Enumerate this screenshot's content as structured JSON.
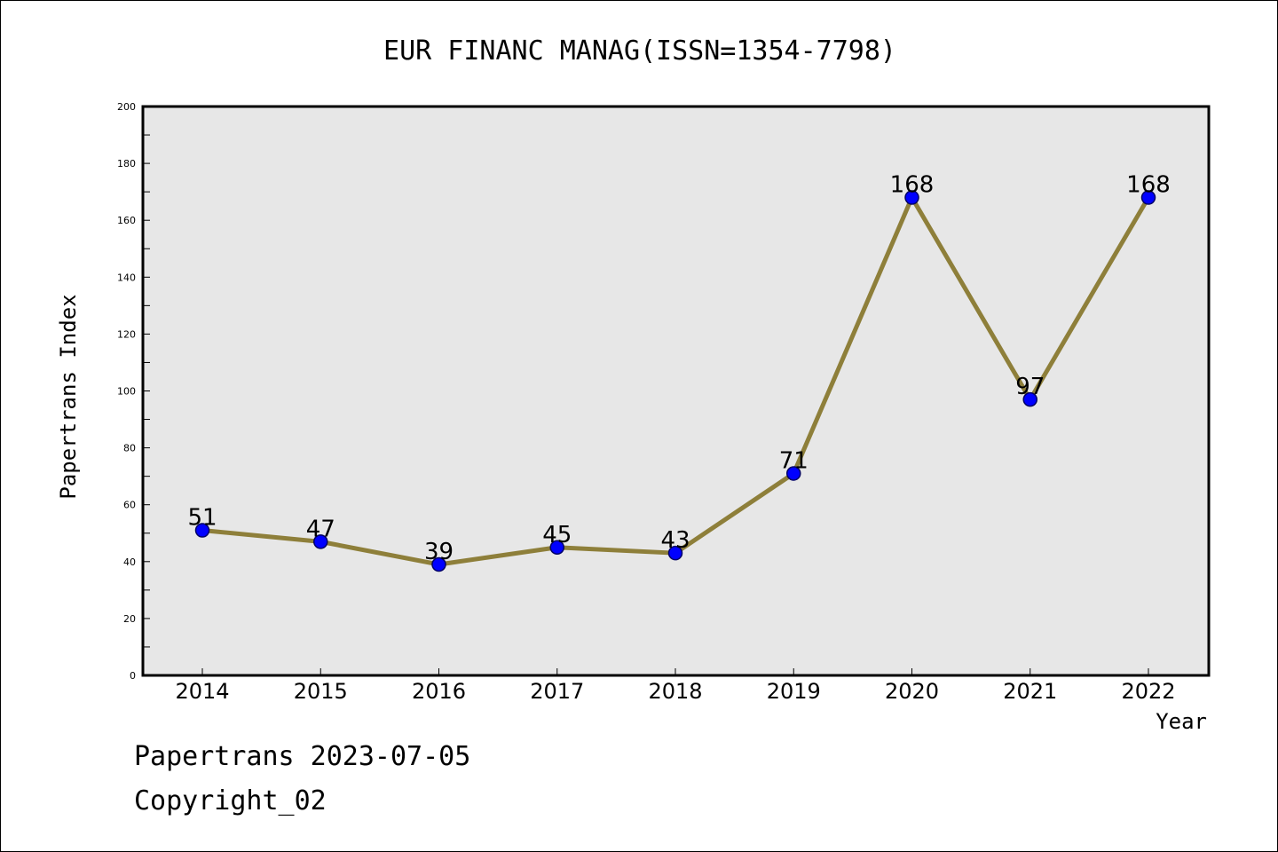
{
  "chart_data": {
    "type": "line",
    "title": "EUR FINANC MANAG(ISSN=1354-7798)",
    "xlabel": "Year",
    "ylabel": "Papertrans Index",
    "categories": [
      "2014",
      "2015",
      "2016",
      "2017",
      "2018",
      "2019",
      "2020",
      "2021",
      "2022"
    ],
    "series": [
      {
        "values": [
          51,
          47,
          39,
          45,
          43,
          71,
          168,
          97,
          168
        ]
      }
    ],
    "data_labels": [
      "51",
      "47",
      "39",
      "45",
      "43",
      "71",
      "168",
      "97",
      "168"
    ],
    "ylim": [
      0,
      200
    ],
    "yticks": [
      "0",
      "20",
      "40",
      "60",
      "80",
      "100",
      "120",
      "140",
      "160",
      "180",
      "200"
    ],
    "yticks_minor_step": 10,
    "grid": false,
    "legend": "none",
    "colors": {
      "line": "#8E7F3A",
      "marker_fill": "#0000FF",
      "marker_edge": "#000066",
      "plot_background": "#E7E7E7",
      "frame": "#000000"
    }
  },
  "footer": {
    "line1": "Papertrans 2023-07-05",
    "line2": "Copyright_02"
  }
}
